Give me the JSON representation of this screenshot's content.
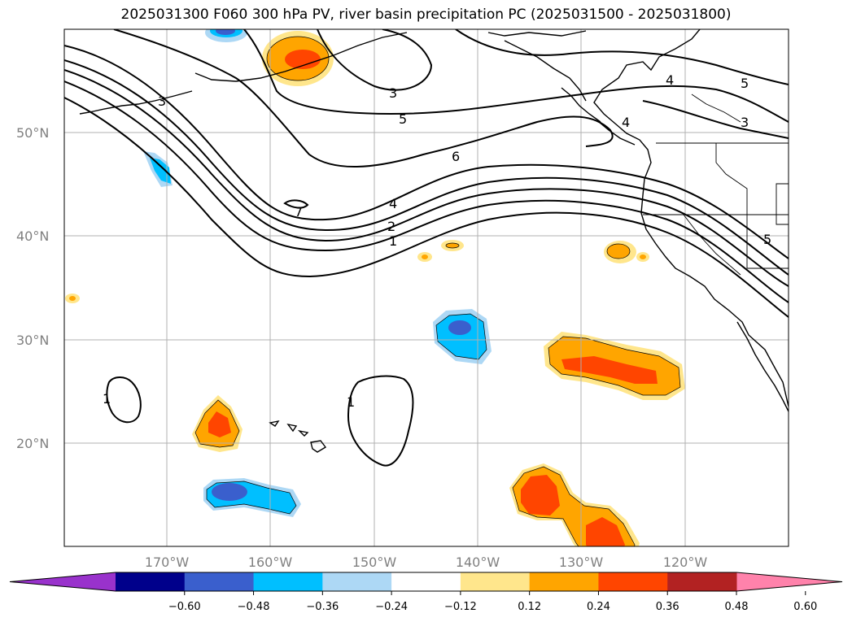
{
  "title": "2025031300 F060 300 hPa PV, river basin precipitation PC (2025031500 - 2025031800)",
  "lat_labels": [
    "50°N",
    "40°N",
    "30°N",
    "20°N"
  ],
  "lon_labels": [
    "170°W",
    "160°W",
    "150°W",
    "140°W",
    "130°W",
    "120°W"
  ],
  "contour_labels": [
    "3",
    "3",
    "5",
    "6",
    "4",
    "2",
    "1",
    "7",
    "1",
    "1",
    "4",
    "5",
    "4",
    "3",
    "5"
  ],
  "colorbar": {
    "ticks": [
      "−0.60",
      "−0.48",
      "−0.36",
      "−0.24",
      "−0.12",
      "0.12",
      "0.24",
      "0.36",
      "0.48",
      "0.60"
    ],
    "colors": [
      "#9932cc",
      "#00008b",
      "#3a5fcd",
      "#00bfff",
      "#add8f5",
      "#ffffff",
      "#ffe68c",
      "#ffa500",
      "#ff4500",
      "#b22222",
      "#ff82ab"
    ]
  },
  "colors": {
    "grid": "#b0b0b0",
    "axis_label": "#808080"
  }
}
